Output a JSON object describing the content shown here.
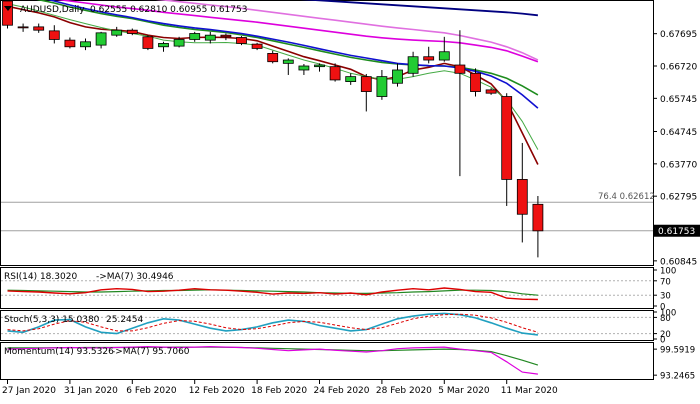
{
  "window": {
    "header_symbol": "AUDUSD,Daily",
    "header_ohlc": "0.62555 0.62810 0.60955 0.61753"
  },
  "colors": {
    "bull": "#22cc33",
    "bear": "#ee1111",
    "price_line": "#a0a0a0",
    "label_bg": "#000000",
    "label_fg": "#ffffff",
    "ma_dark_red": "#8b0000",
    "ma_green": "#1e8c1e",
    "ma_blue": "#1010d0",
    "ma_magenta": "#dd00dd",
    "ma_violet": "#e070e0",
    "ma_light_green": "#44aa44",
    "ma_navy": "#000080",
    "ma_red": "#dd0000",
    "rsi_line": "#dd0000",
    "rsi_ma": "#228822",
    "stoch_main": "#20a0c0",
    "stoch_signal": "#dd0000",
    "mom_line": "#dd00dd",
    "mom_ma": "#228822"
  },
  "chart_data": {
    "type": "candlestick",
    "title": "AUDUSD,Daily 0.62555 0.62810 0.60955 0.61753",
    "price_axis": {
      "ticks": [
        "0.67695",
        "0.66720",
        "0.65745",
        "0.64745",
        "0.63770",
        "0.62795",
        "0.61753",
        "0.60845"
      ],
      "ylim": [
        0.6075,
        0.6865
      ],
      "current_price": "0.61753",
      "fib_level_label": "76.4",
      "fib_level_value": "0.62612"
    },
    "x_axis": {
      "date_labels": [
        "27 Jan 2020",
        "31 Jan 2020",
        "6 Feb 2020",
        "12 Feb 2020",
        "18 Feb 2020",
        "24 Feb 2020",
        "28 Feb 2020",
        "5 Mar 2020",
        "11 Mar 2020"
      ],
      "date_label_bars": [
        0,
        4,
        8,
        12,
        16,
        20,
        24,
        28,
        32
      ]
    },
    "candles": [
      {
        "o": 0.6868,
        "h": 0.6878,
        "l": 0.6785,
        "c": 0.6795
      },
      {
        "o": 0.679,
        "h": 0.68,
        "l": 0.6775,
        "c": 0.6788
      },
      {
        "o": 0.679,
        "h": 0.68,
        "l": 0.6772,
        "c": 0.678
      },
      {
        "o": 0.6778,
        "h": 0.6795,
        "l": 0.674,
        "c": 0.6752
      },
      {
        "o": 0.675,
        "h": 0.6758,
        "l": 0.6725,
        "c": 0.673
      },
      {
        "o": 0.673,
        "h": 0.6755,
        "l": 0.672,
        "c": 0.6745
      },
      {
        "o": 0.6735,
        "h": 0.6775,
        "l": 0.6725,
        "c": 0.6772
      },
      {
        "o": 0.6765,
        "h": 0.679,
        "l": 0.676,
        "c": 0.678
      },
      {
        "o": 0.678,
        "h": 0.6785,
        "l": 0.6765,
        "c": 0.677
      },
      {
        "o": 0.676,
        "h": 0.6765,
        "l": 0.672,
        "c": 0.6725
      },
      {
        "o": 0.673,
        "h": 0.6745,
        "l": 0.6715,
        "c": 0.674
      },
      {
        "o": 0.6732,
        "h": 0.676,
        "l": 0.6728,
        "c": 0.6752
      },
      {
        "o": 0.6752,
        "h": 0.6775,
        "l": 0.6745,
        "c": 0.677
      },
      {
        "o": 0.675,
        "h": 0.6775,
        "l": 0.674,
        "c": 0.6765
      },
      {
        "o": 0.6765,
        "h": 0.677,
        "l": 0.675,
        "c": 0.676
      },
      {
        "o": 0.6758,
        "h": 0.6762,
        "l": 0.6735,
        "c": 0.674
      },
      {
        "o": 0.6738,
        "h": 0.6742,
        "l": 0.672,
        "c": 0.6725
      },
      {
        "o": 0.671,
        "h": 0.6718,
        "l": 0.668,
        "c": 0.6685
      },
      {
        "o": 0.668,
        "h": 0.6695,
        "l": 0.6645,
        "c": 0.669
      },
      {
        "o": 0.666,
        "h": 0.6678,
        "l": 0.6645,
        "c": 0.6672
      },
      {
        "o": 0.667,
        "h": 0.668,
        "l": 0.6655,
        "c": 0.6675
      },
      {
        "o": 0.667,
        "h": 0.668,
        "l": 0.6625,
        "c": 0.663
      },
      {
        "o": 0.6625,
        "h": 0.665,
        "l": 0.6615,
        "c": 0.664
      },
      {
        "o": 0.664,
        "h": 0.6648,
        "l": 0.6535,
        "c": 0.6595
      },
      {
        "o": 0.658,
        "h": 0.666,
        "l": 0.657,
        "c": 0.664
      },
      {
        "o": 0.662,
        "h": 0.668,
        "l": 0.661,
        "c": 0.666
      },
      {
        "o": 0.665,
        "h": 0.6715,
        "l": 0.664,
        "c": 0.67
      },
      {
        "o": 0.67,
        "h": 0.673,
        "l": 0.668,
        "c": 0.669
      },
      {
        "o": 0.669,
        "h": 0.676,
        "l": 0.6685,
        "c": 0.6715
      },
      {
        "o": 0.6675,
        "h": 0.678,
        "l": 0.634,
        "c": 0.665
      },
      {
        "o": 0.665,
        "h": 0.6665,
        "l": 0.658,
        "c": 0.6595
      },
      {
        "o": 0.66,
        "h": 0.6605,
        "l": 0.6585,
        "c": 0.659
      },
      {
        "o": 0.658,
        "h": 0.659,
        "l": 0.625,
        "c": 0.633
      },
      {
        "o": 0.633,
        "h": 0.644,
        "l": 0.614,
        "c": 0.6225
      },
      {
        "o": 0.6255,
        "h": 0.628,
        "l": 0.6095,
        "c": 0.6175
      }
    ],
    "moving_averages": [
      {
        "color_key": "ma_dark_red",
        "width": 1.6,
        "y": [
          0.6852,
          0.6842,
          0.6832,
          0.682,
          0.6803,
          0.679,
          0.6783,
          0.678,
          0.6776,
          0.6765,
          0.6758,
          0.6755,
          0.6758,
          0.6759,
          0.6758,
          0.6755,
          0.6748,
          0.6732,
          0.6716,
          0.67,
          0.6688,
          0.6675,
          0.6662,
          0.664,
          0.663,
          0.664,
          0.666,
          0.6668,
          0.668,
          0.667,
          0.6645,
          0.6618,
          0.6565,
          0.647,
          0.6375
        ]
      },
      {
        "color_key": "ma_green",
        "width": 1.6,
        "y": [
          0.689,
          0.6882,
          0.6872,
          0.6862,
          0.685,
          0.684,
          0.683,
          0.6822,
          0.6815,
          0.6805,
          0.6795,
          0.6788,
          0.6782,
          0.6778,
          0.6773,
          0.6766,
          0.6758,
          0.6748,
          0.6738,
          0.6728,
          0.6718,
          0.6708,
          0.6698,
          0.669,
          0.6683,
          0.6678,
          0.6675,
          0.6673,
          0.6672,
          0.6668,
          0.666,
          0.665,
          0.6635,
          0.6612,
          0.6585
        ]
      },
      {
        "color_key": "ma_blue",
        "width": 1.6,
        "y": [
          0.69,
          0.689,
          0.688,
          0.6868,
          0.6856,
          0.6845,
          0.6835,
          0.6826,
          0.6818,
          0.6808,
          0.68,
          0.6793,
          0.6787,
          0.6782,
          0.6776,
          0.677,
          0.6762,
          0.6753,
          0.6744,
          0.6734,
          0.6724,
          0.6714,
          0.6704,
          0.6696,
          0.6688,
          0.668,
          0.6676,
          0.6673,
          0.6672,
          0.6666,
          0.6656,
          0.6642,
          0.662,
          0.6585,
          0.6545
        ]
      },
      {
        "color_key": "ma_light_green",
        "width": 1,
        "y": [
          0.686,
          0.685,
          0.6838,
          0.6825,
          0.6812,
          0.68,
          0.6788,
          0.6778,
          0.677,
          0.6762,
          0.675,
          0.6745,
          0.6742,
          0.6742,
          0.6743,
          0.674,
          0.6735,
          0.672,
          0.6705,
          0.669,
          0.6678,
          0.6665,
          0.665,
          0.664,
          0.6632,
          0.6632,
          0.664,
          0.665,
          0.6658,
          0.665,
          0.663,
          0.6608,
          0.657,
          0.6505,
          0.642
        ]
      },
      {
        "color_key": "ma_magenta",
        "width": 1.6,
        "y": [
          0.689,
          0.6885,
          0.688,
          0.6874,
          0.6868,
          0.6862,
          0.6856,
          0.685,
          0.6845,
          0.684,
          0.6834,
          0.6829,
          0.6824,
          0.6819,
          0.6814,
          0.6809,
          0.6804,
          0.6798,
          0.6792,
          0.6786,
          0.678,
          0.6774,
          0.6768,
          0.6762,
          0.6757,
          0.6753,
          0.675,
          0.6748,
          0.6746,
          0.6742,
          0.6735,
          0.6728,
          0.6718,
          0.6702,
          0.6685
        ]
      },
      {
        "color_key": "ma_violet",
        "width": 1.6,
        "y": [
          0.6915,
          0.6911,
          0.6907,
          0.6903,
          0.6899,
          0.6895,
          0.689,
          0.6885,
          0.6881,
          0.6876,
          0.6871,
          0.6866,
          0.6861,
          0.6856,
          0.6851,
          0.6846,
          0.684,
          0.6834,
          0.6828,
          0.6822,
          0.6816,
          0.681,
          0.6804,
          0.6798,
          0.6792,
          0.6787,
          0.6782,
          0.6777,
          0.6772,
          0.6764,
          0.6754,
          0.6744,
          0.673,
          0.6712,
          0.669
        ]
      },
      {
        "color_key": "ma_navy",
        "width": 1.8,
        "y": [
          0.693,
          0.6927,
          0.6924,
          0.6921,
          0.6918,
          0.6915,
          0.6912,
          0.6909,
          0.6906,
          0.6903,
          0.69,
          0.6897,
          0.6894,
          0.6891,
          0.6888,
          0.6885,
          0.6882,
          0.6879,
          0.6876,
          0.6873,
          0.687,
          0.6867,
          0.6864,
          0.6861,
          0.6858,
          0.6855,
          0.6852,
          0.6849,
          0.6846,
          0.6843,
          0.684,
          0.6837,
          0.6834,
          0.683,
          0.6825
        ]
      },
      {
        "color_key": "ma_red",
        "width": 1.6,
        "y": [
          0.696,
          0.6959,
          0.6958,
          0.6957,
          0.6956,
          0.6955,
          0.6954,
          0.6953,
          0.6952,
          0.6951,
          0.695,
          0.6949,
          0.6948,
          0.6947,
          0.6946,
          0.6945,
          0.6944,
          0.6943,
          0.6942,
          0.6941,
          0.694,
          0.6939,
          0.6938,
          0.6937,
          0.6936,
          0.6935,
          0.6934,
          0.6933,
          0.6932,
          0.6931,
          0.693,
          0.6928,
          0.6925,
          0.691,
          0.688
        ]
      }
    ],
    "rsi_panel": {
      "label_prefix": "RSI(14) 18.3020",
      "label_ma": "->MA(7) 30.4946",
      "ylim": [
        0,
        100
      ],
      "levels": [
        30,
        70
      ],
      "ticks": [
        "100",
        "70",
        "30",
        "0"
      ],
      "rsi": [
        42,
        40,
        39,
        36,
        34,
        37,
        45,
        48,
        46,
        40,
        41,
        44,
        48,
        45,
        44,
        41,
        38,
        33,
        36,
        35,
        37,
        33,
        36,
        31,
        39,
        44,
        48,
        45,
        50,
        46,
        40,
        38,
        22,
        19,
        18
      ],
      "rsi_ma": [
        44,
        43,
        42,
        41,
        40,
        39,
        39,
        40,
        41,
        42,
        43,
        43,
        44,
        45,
        44,
        43,
        42,
        41,
        40,
        39,
        37,
        36,
        35,
        35,
        36,
        37,
        39,
        40,
        42,
        44,
        44,
        43,
        40,
        34,
        30
      ]
    },
    "stoch_panel": {
      "label_prefix": "Stoch(5,3,3) 15.0380",
      "label_signal": "25.2454",
      "ylim": [
        0,
        100
      ],
      "levels": [
        20,
        80
      ],
      "ticks": [
        "100",
        "80",
        "20",
        "0"
      ],
      "main": [
        30,
        25,
        45,
        70,
        72,
        45,
        25,
        20,
        40,
        60,
        75,
        70,
        55,
        40,
        30,
        35,
        45,
        60,
        70,
        65,
        50,
        40,
        30,
        35,
        55,
        75,
        85,
        92,
        95,
        90,
        78,
        60,
        40,
        22,
        15
      ],
      "signal": [
        35,
        30,
        38,
        55,
        68,
        62,
        45,
        30,
        30,
        42,
        58,
        68,
        66,
        55,
        42,
        35,
        38,
        48,
        60,
        65,
        62,
        52,
        42,
        35,
        42,
        58,
        75,
        85,
        90,
        92,
        88,
        78,
        62,
        42,
        25
      ]
    },
    "momentum_panel": {
      "label_prefix": "Momentum(14) 93.5326",
      "label_ma": "->MA(7) 95.7060",
      "ticks": [
        "99.5919",
        "93.2465"
      ],
      "ylim": [
        92.8,
        100.6
      ],
      "momentum": [
        99.6,
        99.7,
        99.8,
        99.9,
        100.0,
        99.9,
        99.9,
        100.0,
        100.1,
        100.2,
        100.1,
        100.0,
        100.1,
        100.2,
        100.1,
        100.0,
        99.8,
        99.5,
        99.2,
        99.4,
        99.6,
        99.3,
        99.1,
        98.9,
        99.2,
        99.7,
        99.9,
        100.0,
        100.1,
        99.6,
        99.2,
        98.8,
        96.5,
        94.0,
        93.5
      ],
      "momentum_ma": [
        99.9,
        99.9,
        99.9,
        99.95,
        99.95,
        100.0,
        100.0,
        100.0,
        100.0,
        100.05,
        100.05,
        100.1,
        100.1,
        100.1,
        100.05,
        100.0,
        99.9,
        99.8,
        99.7,
        99.6,
        99.5,
        99.4,
        99.3,
        99.2,
        99.2,
        99.3,
        99.4,
        99.5,
        99.6,
        99.5,
        99.3,
        99.0,
        98.0,
        96.9,
        95.7
      ]
    }
  }
}
